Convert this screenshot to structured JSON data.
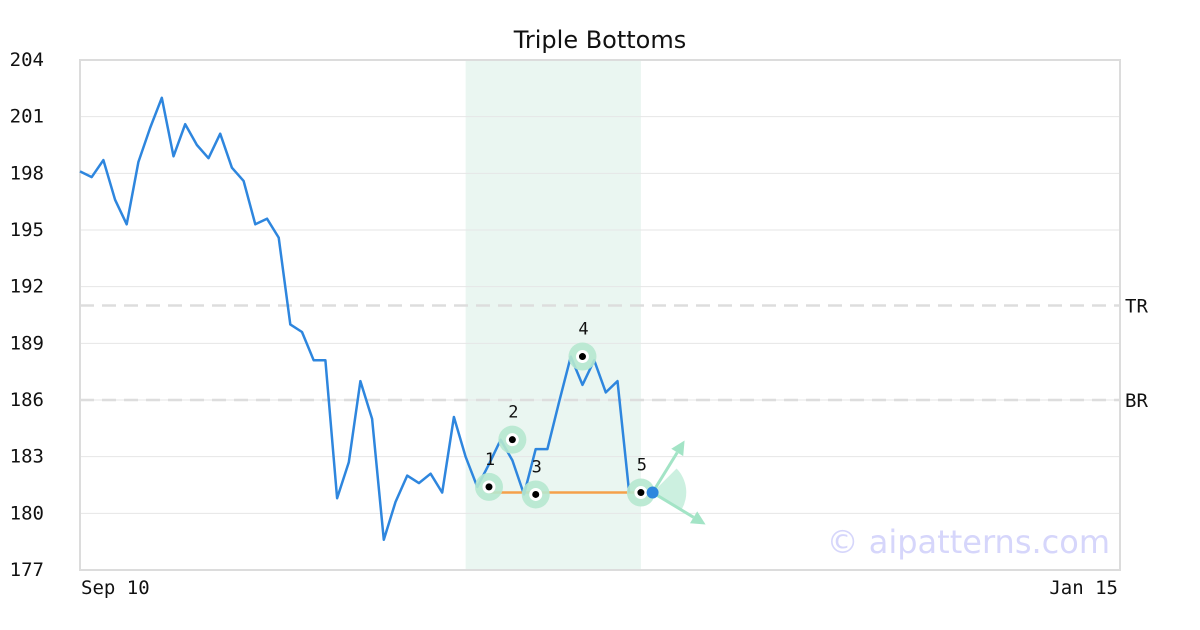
{
  "chart_data": {
    "type": "line",
    "title": "Triple Bottoms",
    "xlabel": "",
    "ylabel": "",
    "x_tick_labels": [
      "Sep 10",
      "Jan 15"
    ],
    "ylim": [
      177,
      204
    ],
    "y_ticks": [
      177,
      180,
      183,
      186,
      189,
      192,
      195,
      198,
      201,
      204
    ],
    "grid": true,
    "series": [
      {
        "values": [
          198.1,
          197.8,
          198.7,
          196.6,
          195.3,
          198.6,
          200.4,
          202.0,
          198.9,
          200.6,
          199.5,
          198.8,
          200.1,
          198.3,
          197.6,
          195.3,
          195.6,
          194.6,
          190.0,
          189.6,
          188.1,
          188.1,
          180.8,
          182.7,
          187.0,
          185.0,
          178.6,
          180.6,
          182.0,
          181.6,
          182.1,
          181.1,
          185.1,
          183.0,
          181.4,
          182.6,
          183.9,
          182.8,
          181.0,
          183.4,
          183.4,
          185.9,
          188.3,
          186.8,
          188.1,
          186.4,
          187.0,
          181.1
        ]
      }
    ],
    "reference_lines": [
      {
        "label": "TR",
        "value": 191.0
      },
      {
        "label": "BR",
        "value": 186.0
      }
    ],
    "highlight_range": {
      "start_index": 33,
      "end_index": 48
    },
    "pattern_points": [
      {
        "label": "1",
        "index": 35,
        "value": 181.4
      },
      {
        "label": "2",
        "index": 37,
        "value": 183.9
      },
      {
        "label": "3",
        "index": 39,
        "value": 181.0
      },
      {
        "label": "4",
        "index": 43,
        "value": 188.3
      },
      {
        "label": "5",
        "index": 48,
        "value": 181.1
      }
    ],
    "support_line": {
      "start_index": 35,
      "end_index": 48,
      "value": 181.1
    },
    "current_point": {
      "index": 49,
      "value": 181.1
    },
    "total_points": 90
  },
  "watermark": "© aipatterns.com",
  "colors": {
    "line": "#2e86de",
    "grid": "#e6e6e6",
    "frame": "#dcdcdc",
    "refline": "#dddddd",
    "highlight": "#eaf6f1",
    "marker_halo": "#b6e8cf",
    "support": "#f5a04a",
    "current": "#2e86de",
    "arrow": "#a3e4c6"
  }
}
